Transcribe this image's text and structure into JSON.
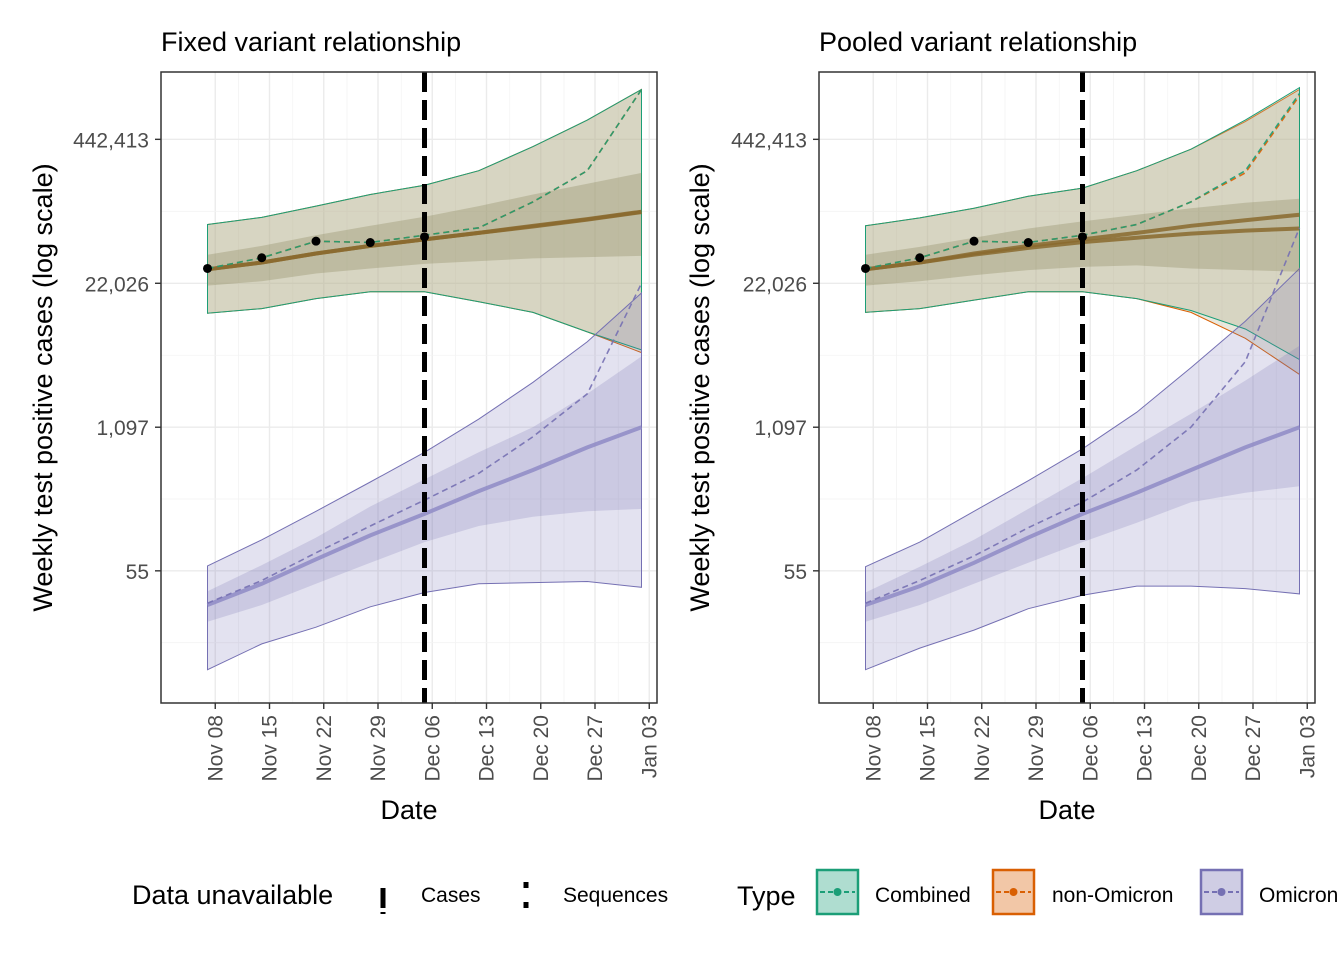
{
  "shared": {
    "y_ticks": [
      {
        "value": 55,
        "label": "55"
      },
      {
        "value": 1097,
        "label": "1,097"
      },
      {
        "value": 22026,
        "label": "22,026"
      },
      {
        "value": 442413,
        "label": "442,413"
      }
    ],
    "x_ticks": [
      "Nov 08",
      "Nov 15",
      "Nov 22",
      "Nov 29",
      "Dec 06",
      "Dec 13",
      "Dec 20",
      "Dec 27",
      "Jan 03"
    ],
    "colors": {
      "combined": "#1b9e77",
      "non_omicron": "#d95f02",
      "omicron": "#7570b3",
      "overlap_fill": "#b7b38f"
    }
  },
  "legend": {
    "data_unavailable_title": "Data unavailable",
    "cases_label": "Cases",
    "sequences_label": "Sequences",
    "type_title": "Type",
    "combined_label": "Combined",
    "non_omicron_label": "non-Omicron",
    "omicron_label": "Omicron"
  },
  "chart_data": [
    {
      "type": "line",
      "title": "Fixed variant relationship",
      "xlabel": "Date",
      "ylabel": "Weekly test positive cases (log scale)",
      "y_scale": "log",
      "ylim": [
        3.5,
        1800000
      ],
      "xlim": [
        "2021-11-01",
        "2022-01-04"
      ],
      "grid": true,
      "legend_position": "bottom",
      "vline": "2021-12-05",
      "observed_cases": {
        "x": [
          "2021-11-07",
          "2021-11-14",
          "2021-11-21",
          "2021-11-28",
          "2021-12-05"
        ],
        "y": [
          30000,
          37500,
          53000,
          51500,
          58000
        ]
      },
      "series": [
        {
          "name": "non-Omicron",
          "x": [
            "2021-11-07",
            "2021-11-14",
            "2021-11-21",
            "2021-11-28",
            "2021-12-05",
            "2021-12-12",
            "2021-12-19",
            "2021-12-26",
            "2022-01-02"
          ],
          "median": [
            29500,
            34000,
            41000,
            48000,
            55000,
            63000,
            72000,
            83000,
            97000
          ],
          "sample": [
            30000,
            37500,
            53000,
            51500,
            60000,
            70000,
            120000,
            230000,
            1250000
          ],
          "lower90": [
            11800,
            13000,
            16000,
            18500,
            18500,
            15000,
            12000,
            8000,
            5200
          ],
          "upper90": [
            75000,
            87000,
            110000,
            140000,
            170000,
            230000,
            380000,
            660000,
            1250000
          ],
          "lower50": [
            21000,
            23000,
            27000,
            30000,
            33000,
            35000,
            37000,
            38000,
            39000
          ],
          "upper50": [
            40000,
            48000,
            60000,
            73000,
            88000,
            110000,
            140000,
            175000,
            220000
          ]
        },
        {
          "name": "Combined",
          "x": [
            "2021-11-07",
            "2021-11-14",
            "2021-11-21",
            "2021-11-28",
            "2021-12-05",
            "2021-12-12",
            "2021-12-19",
            "2021-12-26",
            "2022-01-02"
          ],
          "median": [
            29500,
            34000,
            41000,
            48000,
            55000,
            63000,
            73000,
            84000,
            98000
          ],
          "sample": [
            30000,
            37500,
            53000,
            51500,
            60000,
            70000,
            120000,
            230000,
            1250000
          ],
          "lower90": [
            11800,
            13000,
            16000,
            18500,
            18500,
            15000,
            12000,
            8000,
            5500
          ],
          "upper90": [
            75000,
            87000,
            110000,
            140000,
            170000,
            230000,
            380000,
            660000,
            1250000
          ]
        },
        {
          "name": "Omicron",
          "x": [
            "2021-11-07",
            "2021-11-14",
            "2021-11-21",
            "2021-11-28",
            "2021-12-05",
            "2021-12-12",
            "2021-12-19",
            "2021-12-26",
            "2022-01-02"
          ],
          "median": [
            27,
            42,
            70,
            115,
            180,
            290,
            450,
            720,
            1097
          ],
          "sample": [
            28,
            45,
            80,
            140,
            240,
            420,
            900,
            2200,
            22000
          ],
          "lower90": [
            7,
            12,
            17,
            26,
            35,
            42,
            43,
            44,
            39
          ],
          "upper90": [
            61,
            105,
            190,
            350,
            650,
            1300,
            2800,
            6500,
            18000
          ],
          "lower50": [
            19,
            27,
            42,
            65,
            100,
            140,
            170,
            190,
            200
          ],
          "upper50": [
            36,
            62,
            110,
            210,
            370,
            650,
            1100,
            2200,
            4800
          ]
        }
      ]
    },
    {
      "type": "line",
      "title": "Pooled variant relationship",
      "xlabel": "Date",
      "ylabel": "Weekly test positive cases (log scale)",
      "y_scale": "log",
      "ylim": [
        3.5,
        1800000
      ],
      "xlim": [
        "2021-11-01",
        "2022-01-04"
      ],
      "grid": true,
      "legend_position": "bottom",
      "vline": "2021-12-05",
      "observed_cases": {
        "x": [
          "2021-11-07",
          "2021-11-14",
          "2021-11-21",
          "2021-11-28",
          "2021-12-05"
        ],
        "y": [
          30000,
          37500,
          53000,
          51500,
          58000
        ]
      },
      "series": [
        {
          "name": "non-Omicron",
          "x": [
            "2021-11-07",
            "2021-11-14",
            "2021-11-21",
            "2021-11-28",
            "2021-12-05",
            "2021-12-12",
            "2021-12-19",
            "2021-12-26",
            "2022-01-02"
          ],
          "median": [
            29500,
            34000,
            40000,
            46000,
            52000,
            57000,
            62000,
            66000,
            69000
          ],
          "sample": [
            30000,
            37500,
            53000,
            51500,
            60000,
            75000,
            120000,
            220000,
            1100000
          ],
          "lower90": [
            12000,
            13000,
            15500,
            18500,
            18500,
            16000,
            12000,
            7000,
            3300
          ],
          "upper90": [
            73000,
            86000,
            105000,
            135000,
            160000,
            230000,
            360000,
            640000,
            1250000
          ],
          "lower50": [
            21000,
            23000,
            26000,
            29000,
            31000,
            32000,
            30000,
            29000,
            28000
          ],
          "upper50": [
            40000,
            47000,
            57000,
            69000,
            80000,
            92000,
            105000,
            118000,
            128000
          ]
        },
        {
          "name": "Combined",
          "x": [
            "2021-11-07",
            "2021-11-14",
            "2021-11-21",
            "2021-11-28",
            "2021-12-05",
            "2021-12-12",
            "2021-12-19",
            "2021-12-26",
            "2022-01-02"
          ],
          "median": [
            29500,
            34000,
            41000,
            48000,
            55000,
            63000,
            73000,
            82000,
            92000
          ],
          "sample": [
            30000,
            37500,
            53000,
            51500,
            60000,
            75000,
            120000,
            230000,
            1150000
          ],
          "lower90": [
            12000,
            13000,
            15500,
            18500,
            18500,
            16000,
            12500,
            8500,
            4500
          ],
          "upper90": [
            73000,
            86000,
            105000,
            135000,
            160000,
            230000,
            360000,
            660000,
            1300000
          ]
        },
        {
          "name": "Omicron",
          "x": [
            "2021-11-07",
            "2021-11-14",
            "2021-11-21",
            "2021-11-28",
            "2021-12-05",
            "2021-12-12",
            "2021-12-19",
            "2021-12-26",
            "2022-01-02"
          ],
          "median": [
            27,
            40,
            65,
            110,
            180,
            280,
            450,
            720,
            1097
          ],
          "sample": [
            28,
            45,
            75,
            135,
            230,
            450,
            1100,
            4300,
            70000
          ],
          "lower90": [
            7,
            11,
            16,
            25,
            33,
            40,
            40,
            38,
            34
          ],
          "upper90": [
            60,
            100,
            190,
            360,
            700,
            1500,
            3800,
            10000,
            30000
          ],
          "lower50": [
            19,
            27,
            42,
            65,
            100,
            150,
            230,
            280,
            320
          ],
          "upper50": [
            35,
            60,
            105,
            200,
            380,
            750,
            1450,
            2900,
            6000
          ]
        }
      ]
    }
  ]
}
